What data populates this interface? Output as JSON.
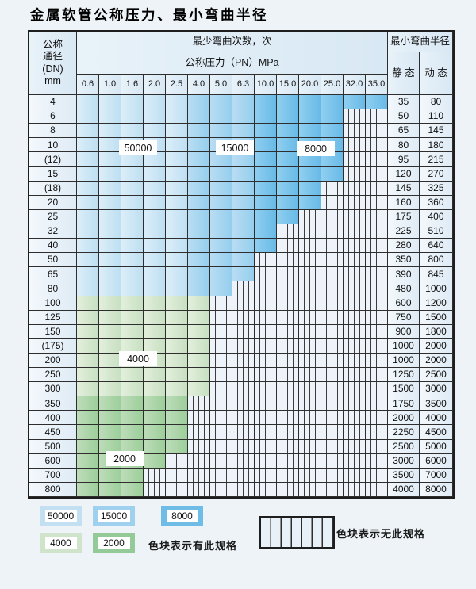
{
  "title": "金属软管公称压力、最小弯曲半径",
  "table": {
    "dn_header_lines": [
      "公称",
      "通径",
      "(DN)",
      "mm"
    ],
    "bend_cycles_header": "最少弯曲次数，次",
    "pressure_header": "公称压力（PN）MPa",
    "radius_header": "最小弯曲半径",
    "static_header": "静 态",
    "dynamic_header": "动 态",
    "pressure_columns": [
      "0.6",
      "1.0",
      "1.6",
      "2.0",
      "2.5",
      "4.0",
      "5.0",
      "6.3",
      "10.0",
      "15.0",
      "20.0",
      "25.0",
      "32.0",
      "35.0"
    ],
    "blue_column_bands": {
      "50000": [
        0,
        4
      ],
      "15000": [
        5,
        7
      ],
      "8000": [
        8,
        13
      ]
    },
    "rows": [
      {
        "dn": "4",
        "colored_columns": 14,
        "band": "blue",
        "static": "35",
        "dynamic": "80"
      },
      {
        "dn": "6",
        "colored_columns": 12,
        "band": "blue",
        "static": "50",
        "dynamic": "110"
      },
      {
        "dn": "8",
        "colored_columns": 12,
        "band": "blue",
        "static": "65",
        "dynamic": "145"
      },
      {
        "dn": "10",
        "colored_columns": 12,
        "band": "blue",
        "static": "80",
        "dynamic": "180"
      },
      {
        "dn": "(12)",
        "colored_columns": 12,
        "band": "blue",
        "static": "95",
        "dynamic": "215"
      },
      {
        "dn": "15",
        "colored_columns": 12,
        "band": "blue",
        "static": "120",
        "dynamic": "270"
      },
      {
        "dn": "(18)",
        "colored_columns": 11,
        "band": "blue",
        "static": "145",
        "dynamic": "325"
      },
      {
        "dn": "20",
        "colored_columns": 11,
        "band": "blue",
        "static": "160",
        "dynamic": "360"
      },
      {
        "dn": "25",
        "colored_columns": 10,
        "band": "blue",
        "static": "175",
        "dynamic": "400"
      },
      {
        "dn": "32",
        "colored_columns": 9,
        "band": "blue",
        "static": "225",
        "dynamic": "510"
      },
      {
        "dn": "40",
        "colored_columns": 9,
        "band": "blue",
        "static": "280",
        "dynamic": "640"
      },
      {
        "dn": "50",
        "colored_columns": 8,
        "band": "blue",
        "static": "350",
        "dynamic": "800"
      },
      {
        "dn": "65",
        "colored_columns": 8,
        "band": "blue",
        "static": "390",
        "dynamic": "845"
      },
      {
        "dn": "80",
        "colored_columns": 7,
        "band": "blue",
        "static": "480",
        "dynamic": "1000"
      },
      {
        "dn": "100",
        "colored_columns": 6,
        "band": "4000",
        "static": "600",
        "dynamic": "1200"
      },
      {
        "dn": "125",
        "colored_columns": 6,
        "band": "4000",
        "static": "750",
        "dynamic": "1500"
      },
      {
        "dn": "150",
        "colored_columns": 6,
        "band": "4000",
        "static": "900",
        "dynamic": "1800"
      },
      {
        "dn": "(175)",
        "colored_columns": 6,
        "band": "4000",
        "static": "1000",
        "dynamic": "2000"
      },
      {
        "dn": "200",
        "colored_columns": 6,
        "band": "4000",
        "static": "1000",
        "dynamic": "2000"
      },
      {
        "dn": "250",
        "colored_columns": 6,
        "band": "4000",
        "static": "1250",
        "dynamic": "2500"
      },
      {
        "dn": "300",
        "colored_columns": 6,
        "band": "4000",
        "static": "1500",
        "dynamic": "3000"
      },
      {
        "dn": "350",
        "colored_columns": 5,
        "band": "2000",
        "static": "1750",
        "dynamic": "3500"
      },
      {
        "dn": "400",
        "colored_columns": 5,
        "band": "2000",
        "static": "2000",
        "dynamic": "4000"
      },
      {
        "dn": "450",
        "colored_columns": 5,
        "band": "2000",
        "static": "2250",
        "dynamic": "4500"
      },
      {
        "dn": "500",
        "colored_columns": 5,
        "band": "2000",
        "static": "2500",
        "dynamic": "5000"
      },
      {
        "dn": "600",
        "colored_columns": 4,
        "band": "2000",
        "static": "3000",
        "dynamic": "6000"
      },
      {
        "dn": "700",
        "colored_columns": 3,
        "band": "2000",
        "static": "3500",
        "dynamic": "7000"
      },
      {
        "dn": "800",
        "colored_columns": 3,
        "band": "2000",
        "static": "4000",
        "dynamic": "8000"
      }
    ],
    "cycle_zone_labels": [
      "50000",
      "15000",
      "8000",
      "4000",
      "2000"
    ]
  },
  "colors": {
    "c50000": "#c3e0f2",
    "c15000": "#9fd0ee",
    "c8000": "#6fbde6",
    "c4000": "#cfe4cb",
    "c2000": "#93ca97",
    "grid": "#2e2e2e",
    "page_bg": "#eef3f7"
  },
  "legend": {
    "items": [
      {
        "label": "50000",
        "color_key": "c50000"
      },
      {
        "label": "15000",
        "color_key": "c15000"
      },
      {
        "label": "8000",
        "color_key": "c8000"
      },
      {
        "label": "4000",
        "color_key": "c4000"
      },
      {
        "label": "2000",
        "color_key": "c2000"
      }
    ],
    "has_spec_text": "色块表示有此规格",
    "no_spec_text": "色块表示无此规格"
  }
}
